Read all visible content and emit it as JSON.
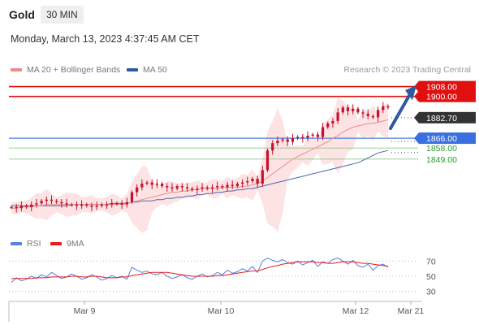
{
  "header": {
    "symbol": "Gold",
    "timeframe": "30 MIN",
    "datetime": "Monday, March 13, 2023 4:37:45 AM CET"
  },
  "legend": {
    "ma20": "MA 20 + Bollinger Bands",
    "ma50": "MA 50",
    "credit": "Research © 2023 Trading Central"
  },
  "rsi_legend": {
    "rsi": "RSI",
    "ma9": "9MA"
  },
  "colors": {
    "resistance": "#e01010",
    "pivot": "#4a7fe0",
    "support": "#2a9a2a",
    "candle": "#c8102e",
    "ma20": "#f08a8a",
    "ma50": "#4a6aa8",
    "bollinger_fill": "#fde3e3",
    "rsi": "#5a7fe0",
    "rsi_ma": "#e81a1a"
  },
  "chart_data": [
    {
      "type": "candlestick",
      "title": "Gold",
      "x_ticks": [
        "Mar 9",
        "Mar 10",
        "Mar 12",
        "Mar 21"
      ],
      "y_range": [
        1790,
        1915
      ],
      "price_series": [
        1810,
        1809,
        1811,
        1810,
        1812,
        1813,
        1815,
        1816,
        1815,
        1814,
        1813,
        1812,
        1812,
        1811,
        1812,
        1811,
        1810,
        1811,
        1812,
        1812,
        1813,
        1813,
        1812,
        1814,
        1822,
        1826,
        1829,
        1830,
        1828,
        1829,
        1827,
        1826,
        1825,
        1827,
        1826,
        1825,
        1824,
        1825,
        1826,
        1825,
        1826,
        1827,
        1826,
        1828,
        1827,
        1829,
        1830,
        1831,
        1833,
        1829,
        1840,
        1856,
        1862,
        1864,
        1865,
        1863,
        1866,
        1867,
        1866,
        1868,
        1869,
        1867,
        1875,
        1878,
        1880,
        1887,
        1891,
        1888,
        1890,
        1887,
        1886,
        1884,
        1883,
        1889,
        1892,
        1891
      ],
      "ma20_series": [
        1809,
        1809,
        1810,
        1810,
        1810,
        1811,
        1811,
        1812,
        1812,
        1812,
        1812,
        1812,
        1812,
        1812,
        1812,
        1812,
        1812,
        1812,
        1812,
        1812,
        1812,
        1812,
        1812,
        1813,
        1814,
        1815,
        1816,
        1817,
        1818,
        1819,
        1820,
        1821,
        1822,
        1822,
        1823,
        1823,
        1824,
        1824,
        1825,
        1825,
        1825,
        1825,
        1826,
        1826,
        1826,
        1826,
        1827,
        1827,
        1828,
        1829,
        1831,
        1834,
        1837,
        1840,
        1843,
        1846,
        1849,
        1851,
        1853,
        1855,
        1857,
        1859,
        1861,
        1863,
        1866,
        1868,
        1871,
        1873,
        1875,
        1876,
        1877,
        1878,
        1878,
        1879,
        1880,
        1881
      ],
      "ma50_series": [
        1811,
        1811,
        1811,
        1811,
        1811,
        1811,
        1811,
        1811,
        1811,
        1811,
        1811,
        1811,
        1812,
        1812,
        1812,
        1812,
        1812,
        1812,
        1812,
        1812,
        1813,
        1813,
        1813,
        1813,
        1814,
        1814,
        1815,
        1815,
        1815,
        1816,
        1816,
        1817,
        1817,
        1818,
        1818,
        1819,
        1819,
        1820,
        1820,
        1821,
        1821,
        1822,
        1822,
        1823,
        1823,
        1824,
        1824,
        1825,
        1825,
        1826,
        1827,
        1828,
        1829,
        1830,
        1831,
        1832,
        1833,
        1834,
        1835,
        1836,
        1837,
        1838,
        1839,
        1840,
        1841,
        1842,
        1843,
        1844,
        1845,
        1846,
        1848,
        1850,
        1852,
        1854,
        1855,
        1856
      ],
      "levels": [
        {
          "value": 1908.0,
          "label": "1908.00",
          "kind": "resistance"
        },
        {
          "value": 1900.0,
          "label": "1900.00",
          "kind": "resistance"
        },
        {
          "value": 1882.7,
          "label": "1882.70",
          "kind": "last"
        },
        {
          "value": 1866.0,
          "label": "1866.00",
          "kind": "pivot"
        },
        {
          "value": 1858.0,
          "label": "1858.00",
          "kind": "support"
        },
        {
          "value": 1849.0,
          "label": "1849.00",
          "kind": "support"
        }
      ]
    },
    {
      "type": "line",
      "title": "RSI",
      "y_ticks": [
        70,
        50,
        30
      ],
      "y_range": [
        20,
        80
      ],
      "rsi_series": [
        42,
        48,
        44,
        46,
        50,
        47,
        52,
        49,
        55,
        51,
        47,
        49,
        53,
        50,
        46,
        48,
        52,
        49,
        45,
        47,
        51,
        48,
        50,
        46,
        62,
        58,
        55,
        57,
        53,
        52,
        55,
        50,
        47,
        49,
        52,
        48,
        46,
        50,
        53,
        49,
        51,
        55,
        52,
        58,
        54,
        56,
        60,
        57,
        63,
        55,
        70,
        74,
        71,
        69,
        72,
        68,
        66,
        70,
        65,
        68,
        71,
        63,
        69,
        67,
        72,
        74,
        70,
        66,
        71,
        64,
        62,
        66,
        58,
        64,
        66,
        62
      ],
      "rsi_ma_series": [
        47,
        47,
        47,
        47,
        47,
        48,
        48,
        48,
        49,
        49,
        49,
        49,
        50,
        50,
        49,
        49,
        50,
        50,
        49,
        48,
        48,
        48,
        49,
        49,
        51,
        52,
        53,
        54,
        55,
        55,
        55,
        55,
        54,
        53,
        52,
        51,
        50,
        50,
        50,
        50,
        50,
        51,
        51,
        52,
        53,
        54,
        55,
        56,
        57,
        57,
        59,
        61,
        63,
        64,
        66,
        67,
        68,
        69,
        69,
        69,
        69,
        68,
        68,
        67,
        67,
        68,
        69,
        69,
        69,
        68,
        67,
        67,
        66,
        65,
        64,
        63
      ]
    }
  ]
}
